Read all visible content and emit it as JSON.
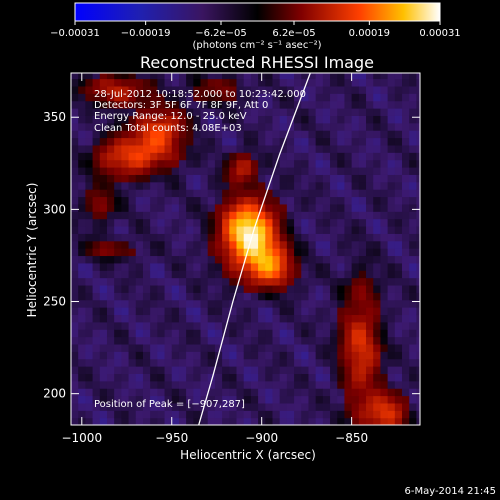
{
  "chart_data": {
    "type": "heatmap",
    "title": "Reconstructed RHESSI Image",
    "xlabel": "Heliocentric X (arcsec)",
    "ylabel": "Heliocentric Y (arcsec)",
    "xlim": [
      -1006,
      -812
    ],
    "ylim": [
      183,
      374
    ],
    "x_ticks": [
      -1000,
      -950,
      -900,
      -850
    ],
    "x_tick_labels": [
      "−1000",
      "−950",
      "−900",
      "−850"
    ],
    "y_ticks": [
      200,
      250,
      300,
      350
    ],
    "y_tick_labels": [
      "200",
      "250",
      "300",
      "350"
    ],
    "colorbar": {
      "min": -0.00031,
      "max": 0.00031,
      "ticks": [
        -0.00031,
        -0.00019,
        -6.2e-05,
        6.2e-05,
        0.00019,
        0.00031
      ],
      "tick_labels": [
        "−0.00031",
        "−0.00019",
        "−6.2e−05",
        "6.2e−05",
        "0.00019",
        "0.00031"
      ],
      "label": "(photons cm⁻² s⁻¹ asec⁻²)"
    },
    "info_lines": [
      "28-Jul-2012 10:18:52.000 to 10:23:42.000",
      "Detectors: 3F 5F 6F 7F 8F 9F, Att 0",
      "Energy Range: 12.0 - 25.0 keV",
      "Clean     Total counts: 4.08E+03"
    ],
    "peak_label": "Position of Peak = [−907,287]",
    "peak": {
      "x": -907,
      "y": 287
    },
    "sources": [
      {
        "x": -907,
        "y": 287,
        "amp": 1.0,
        "sx": 11,
        "sy": 13
      },
      {
        "x": -895,
        "y": 268,
        "amp": 0.55,
        "sx": 9,
        "sy": 8
      },
      {
        "x": -970,
        "y": 330,
        "amp": 0.55,
        "sx": 14,
        "sy": 8
      },
      {
        "x": -955,
        "y": 345,
        "amp": 0.45,
        "sx": 10,
        "sy": 8
      },
      {
        "x": -980,
        "y": 365,
        "amp": 0.35,
        "sx": 15,
        "sy": 6
      },
      {
        "x": -925,
        "y": 365,
        "amp": 0.25,
        "sx": 10,
        "sy": 6
      },
      {
        "x": -845,
        "y": 225,
        "amp": 0.45,
        "sx": 8,
        "sy": 25
      },
      {
        "x": -830,
        "y": 190,
        "amp": 0.5,
        "sx": 8,
        "sy": 8
      },
      {
        "x": -912,
        "y": 322,
        "amp": 0.35,
        "sx": 6,
        "sy": 6
      },
      {
        "x": -985,
        "y": 278,
        "amp": 0.25,
        "sx": 12,
        "sy": 4
      },
      {
        "x": -990,
        "y": 305,
        "amp": 0.2,
        "sx": 8,
        "sy": 10
      }
    ],
    "limb": [
      {
        "x": -873,
        "y": 374
      },
      {
        "x": -890,
        "y": 330
      },
      {
        "x": -904,
        "y": 290
      },
      {
        "x": -916,
        "y": 250
      },
      {
        "x": -927,
        "y": 210
      },
      {
        "x": -935,
        "y": 183
      }
    ]
  },
  "footer": {
    "timestamp": "6-May-2014 21:45"
  }
}
